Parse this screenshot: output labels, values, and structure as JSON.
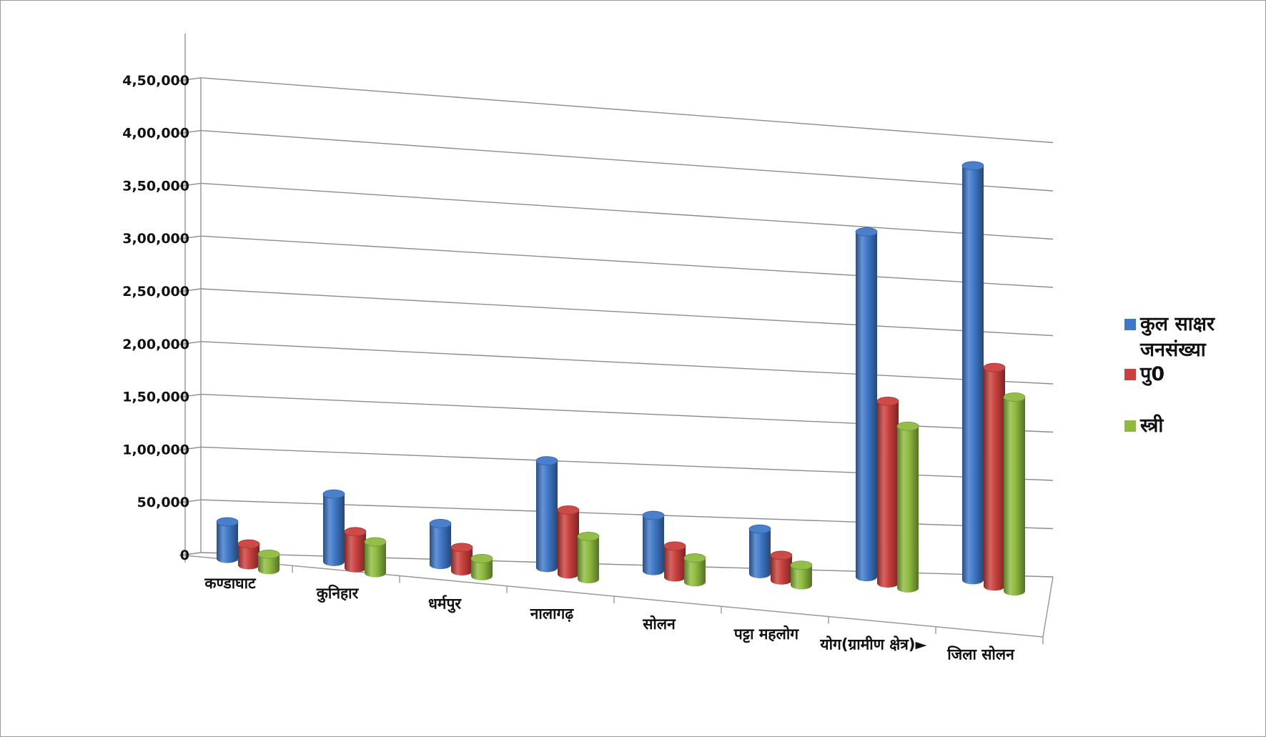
{
  "chart_data": {
    "type": "bar",
    "subtype": "3d-cylinder-clustered",
    "title": "",
    "xlabel": "",
    "ylabel": "",
    "ylim": [
      0,
      450000
    ],
    "yticks": [
      "0",
      "50,000",
      "1,00,000",
      "1,50,000",
      "2,00,000",
      "2,50,000",
      "3,00,000",
      "3,50,000",
      "4,00,000",
      "4,50,000"
    ],
    "categories": [
      "कण्डाघाट",
      "कुनिहार",
      "धर्मपुर",
      "नालागढ़",
      "सोलन",
      "पट्टा महलोग",
      "योग(ग्रामीण क्षेत्र)►",
      "जिला सोलन"
    ],
    "series": [
      {
        "name": "कुल साक्षर जनसंख्या",
        "color": "#3f78c8",
        "values": [
          35000,
          65000,
          40000,
          105000,
          55000,
          45000,
          350000,
          425000
        ]
      },
      {
        "name": "पु0",
        "color": "#c9403d",
        "values": [
          20000,
          35000,
          23000,
          63000,
          31000,
          25000,
          185000,
          225000
        ]
      },
      {
        "name": "स्त्री",
        "color": "#8ebb3f",
        "values": [
          15000,
          30000,
          17000,
          42000,
          24000,
          20000,
          165000,
          200000
        ]
      }
    ],
    "legend": {
      "position": "right",
      "entries": [
        "कुल साक्षर",
        "जनसंख्या",
        "पु0",
        "स्त्री"
      ]
    },
    "grid": true
  }
}
